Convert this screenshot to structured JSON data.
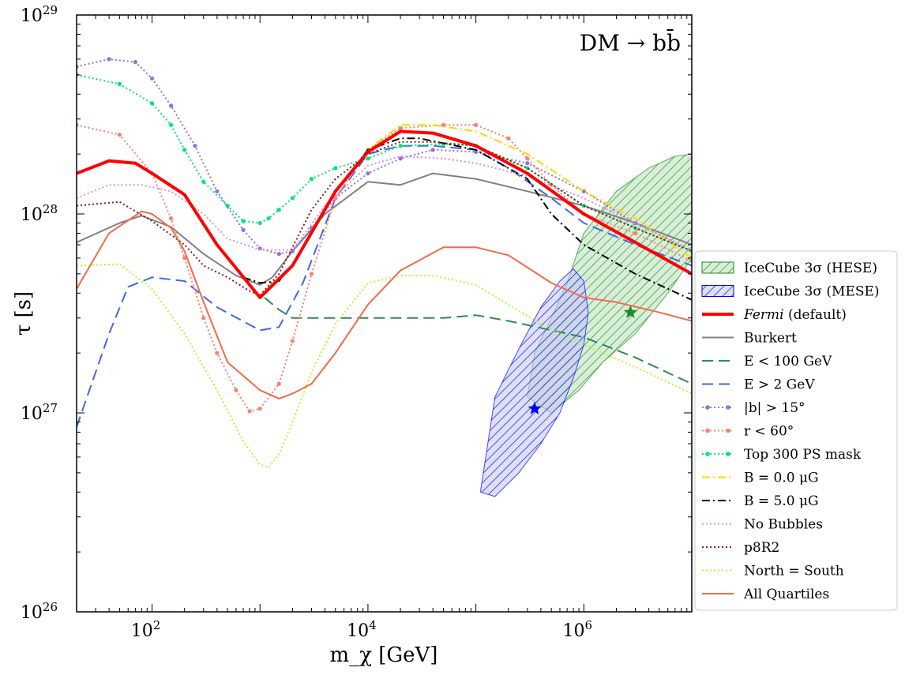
{
  "chart_data": {
    "type": "line",
    "annotation": "DM → bb̄",
    "xlabel": "m_χ [GeV]",
    "ylabel": "τ [s]",
    "xscale": "log",
    "yscale": "log",
    "xlim": [
      20,
      10000000
    ],
    "ylim": [
      1e+26,
      1e+29
    ],
    "x_ticks": [
      {
        "value": 100,
        "base": "10",
        "exp": "2"
      },
      {
        "value": 10000,
        "base": "10",
        "exp": "4"
      },
      {
        "value": 1000000,
        "base": "10",
        "exp": "6"
      }
    ],
    "y_ticks": [
      {
        "value": 1e+26,
        "base": "10",
        "exp": "26"
      },
      {
        "value": 1e+27,
        "base": "10",
        "exp": "27"
      },
      {
        "value": 1e+28,
        "base": "10",
        "exp": "28"
      },
      {
        "value": 1e+29,
        "base": "10",
        "exp": "29"
      }
    ],
    "legend_position": "right, outside",
    "series": [
      {
        "name": "Burkert",
        "color": "#808080",
        "dash": "solid",
        "width": 2,
        "x": [
          20,
          50,
          80,
          150,
          300,
          600,
          1000,
          1300,
          2000,
          4000,
          10000,
          20000,
          40000,
          100000,
          300000,
          1000000,
          3000000,
          10000000
        ],
        "y": [
          7.2e+27,
          9e+27,
          9.8e+27,
          8.6e+27,
          6.3e+27,
          4.9e+27,
          4.4e+27,
          4.8e+27,
          6.5e+27,
          1e+28,
          1.45e+28,
          1.4e+28,
          1.6e+28,
          1.5e+28,
          1.3e+28,
          1.1e+28,
          9e+27,
          7e+27
        ]
      },
      {
        "name": "E < 100 GeV",
        "color": "#2e8b57",
        "dash": "long",
        "width": 2,
        "x": [
          1100,
          1500,
          2000,
          5000,
          10000,
          50000,
          100000,
          200000,
          1000000,
          3000000,
          10000000
        ],
        "y": [
          3.8e+27,
          3.3e+27,
          3e+27,
          3e+27,
          3e+27,
          3e+27,
          3.1e+27,
          2.9e+27,
          2.4e+27,
          1.9e+27,
          1.4e+27
        ]
      },
      {
        "name": "E > 2 GeV",
        "color": "#4169e1",
        "dash": "long",
        "width": 2,
        "x": [
          20,
          40,
          60,
          100,
          200,
          400,
          1000,
          1500,
          2500,
          5000,
          10000,
          20000,
          40000,
          100000,
          200000,
          500000,
          1000000,
          3000000,
          10000000
        ],
        "y": [
          8.5e+26,
          2.5e+27,
          4.3e+27,
          4.8e+27,
          4.6e+27,
          3.4e+27,
          2.6e+27,
          2.7e+27,
          4.5e+27,
          1.2e+28,
          2e+28,
          2.2e+28,
          2.2e+28,
          2.1e+28,
          1.7e+28,
          1.2e+28,
          9e+27,
          7e+27,
          5.5e+27
        ]
      },
      {
        "name": "|b| > 15°",
        "color": "#9370db",
        "dash": "dotted-marker",
        "width": 2,
        "x": [
          20,
          40,
          70,
          100,
          150,
          250,
          400,
          700,
          1000,
          1500,
          2000,
          3000,
          5000,
          10000,
          20000,
          40000,
          100000,
          300000,
          1000000,
          3000000,
          10000000
        ],
        "y": [
          5.5e+28,
          6e+28,
          5.8e+28,
          4.8e+28,
          3.5e+28,
          2.2e+28,
          1.3e+28,
          8.3e+27,
          6.7e+27,
          6.3e+27,
          6.5e+27,
          8.5e+27,
          1.2e+28,
          1.6e+28,
          1.9e+28,
          2.1e+28,
          2.05e+28,
          1.8e+28,
          1.3e+28,
          9e+27,
          6.5e+27
        ]
      },
      {
        "name": "r < 60°",
        "color": "#fa8072",
        "dash": "dotted-marker",
        "width": 2,
        "x": [
          20,
          50,
          100,
          150,
          200,
          300,
          400,
          600,
          800,
          1000,
          1500,
          2000,
          3000,
          5000,
          10000,
          20000,
          50000,
          100000,
          200000,
          300000,
          500000,
          1000000,
          3000000,
          10000000
        ],
        "y": [
          2.8e+28,
          2.5e+28,
          1.6e+28,
          9.5e+27,
          6e+27,
          3e+27,
          2e+27,
          1.3e+27,
          1.02e+27,
          1.05e+27,
          1.4e+27,
          2.3e+27,
          5e+27,
          1.2e+28,
          2.1e+28,
          2.7e+28,
          2.8e+28,
          2.8e+28,
          2.4e+28,
          1.9e+28,
          1.4e+28,
          1e+28,
          8e+27,
          5.8e+27
        ]
      },
      {
        "name": "Top 300 PS mask",
        "color": "#00e676",
        "dash": "dotted-marker",
        "width": 2,
        "x": [
          20,
          50,
          100,
          150,
          200,
          300,
          500,
          700,
          1000,
          1200,
          1500,
          2000,
          3000,
          5000,
          10000,
          20000,
          50000,
          100000,
          300000,
          1000000,
          3000000,
          10000000
        ],
        "y": [
          5e+28,
          4.5e+28,
          3.6e+28,
          2.8e+28,
          2.1e+28,
          1.45e+28,
          1.1e+28,
          9.2e+27,
          9e+27,
          9.5e+27,
          1.05e+28,
          1.2e+28,
          1.5e+28,
          1.7e+28,
          1.9e+28,
          2.2e+28,
          2.25e+28,
          2.2e+28,
          1.7e+28,
          1.1e+28,
          8.5e+27,
          6.5e+27
        ]
      },
      {
        "name": "B = 0.0 μG",
        "color": "#ffd700",
        "dash": "dashdot",
        "width": 2,
        "x": [
          20,
          40,
          70,
          100,
          200,
          400,
          1000,
          2000,
          5000,
          10000,
          20000,
          40000,
          100000,
          300000,
          1000000,
          3000000,
          10000000
        ],
        "y": [
          1.6e+28,
          1.85e+28,
          1.8e+28,
          1.6e+28,
          1.25e+28,
          7e+27,
          3.8e+27,
          5.5e+27,
          1.3e+28,
          2.1e+28,
          2.8e+28,
          2.8e+28,
          2.6e+28,
          2e+28,
          1.3e+28,
          9.5e+27,
          6e+27
        ]
      },
      {
        "name": "B = 5.0 μG",
        "color": "#000000",
        "dash": "dashdot",
        "width": 2,
        "x": [
          20,
          40,
          70,
          100,
          200,
          400,
          700,
          1000,
          1500,
          2000,
          5000,
          10000,
          20000,
          30000,
          100000,
          300000,
          500000,
          1000000,
          3000000,
          10000000
        ],
        "y": [
          1.6e+28,
          1.85e+28,
          1.8e+28,
          1.6e+28,
          1.25e+28,
          7e+27,
          4.8e+27,
          4.5e+27,
          4.6e+27,
          5.5e+27,
          1.3e+28,
          2.1e+28,
          2.4e+28,
          2.4e+28,
          2.1e+28,
          1.5e+28,
          1e+28,
          7e+27,
          5e+27,
          3.7e+27
        ]
      },
      {
        "name": "No Bubbles",
        "color": "#da8fe8",
        "dash": "dotted",
        "width": 2,
        "x": [
          20,
          40,
          80,
          150,
          300,
          500,
          1000,
          2000,
          4000,
          10000,
          20000,
          50000,
          100000,
          300000,
          1000000,
          3000000,
          10000000
        ],
        "y": [
          1.2e+28,
          1.4e+28,
          1.4e+28,
          1.3e+28,
          1e+28,
          7.5e+27,
          6.6e+27,
          6.6e+27,
          1.1e+28,
          1.75e+28,
          1.95e+28,
          1.9e+28,
          1.8e+28,
          1.55e+28,
          1.2e+28,
          9e+27,
          6.6e+27
        ]
      },
      {
        "name": "p8R2",
        "color": "#8b1a1a",
        "dash": "dotted",
        "width": 2,
        "x": [
          20,
          50,
          100,
          200,
          300,
          500,
          800,
          1000,
          1500,
          2000,
          3000,
          5000,
          10000,
          20000,
          40000,
          100000,
          300000,
          1000000,
          3000000,
          10000000
        ],
        "y": [
          1.1e+28,
          1.15e+28,
          9.2e+27,
          7e+27,
          5.5e+27,
          4.8e+27,
          4.1e+27,
          3.9e+27,
          5e+27,
          6.8e+27,
          1.05e+28,
          1.5e+28,
          2e+28,
          2.3e+28,
          2.3e+28,
          2.2e+28,
          1.7e+28,
          1.1e+28,
          8.5e+27,
          6.5e+27
        ]
      },
      {
        "name": "North = South",
        "color": "#adff2f",
        "dash": "dotted",
        "width": 2,
        "x": [
          20,
          50,
          100,
          200,
          400,
          700,
          1000,
          1200,
          1500,
          2000,
          3000,
          5000,
          10000,
          20000,
          40000,
          100000,
          200000,
          400000,
          1000000,
          3000000,
          10000000
        ],
        "y": [
          5.5e+27,
          5.6e+27,
          4.2e+27,
          2.5e+27,
          1.3e+27,
          7.2e+26,
          5.5e+26,
          5.3e+26,
          6.2e+26,
          9e+26,
          1.6e+27,
          2.8e+27,
          4.5e+27,
          4.9e+27,
          4.9e+27,
          4.4e+27,
          3.5e+27,
          2.8e+27,
          2.2e+27,
          1.7e+27,
          1.25e+27
        ]
      },
      {
        "name": "All Quartiles",
        "color": "#f4694b",
        "dash": "solid",
        "width": 2,
        "x": [
          20,
          40,
          80,
          100,
          150,
          200,
          300,
          500,
          1000,
          1500,
          2000,
          3000,
          5000,
          10000,
          20000,
          50000,
          100000,
          200000,
          500000,
          1000000,
          2000000,
          5000000,
          10000000
        ],
        "y": [
          4.2e+27,
          8e+27,
          1.03e+28,
          1e+28,
          8.5e+27,
          6.5e+27,
          3.6e+27,
          1.8e+27,
          1.3e+27,
          1.18e+27,
          1.25e+27,
          1.4e+27,
          2e+27,
          3.5e+27,
          5.2e+27,
          6.8e+27,
          6.8e+27,
          6.2e+27,
          4.5e+27,
          3.8e+27,
          3.6e+27,
          3.2e+27,
          2.9e+27
        ]
      },
      {
        "name": "Fermi (default)",
        "color": "#ff0000",
        "dash": "solid",
        "width": 4,
        "x": [
          20,
          40,
          70,
          100,
          200,
          400,
          1000,
          2000,
          5000,
          10000,
          20000,
          40000,
          100000,
          300000,
          1000000,
          3000000,
          10000000
        ],
        "y": [
          1.6e+28,
          1.85e+28,
          1.8e+28,
          1.6e+28,
          1.25e+28,
          7e+27,
          3.8e+27,
          5.5e+27,
          1.3e+28,
          2.05e+28,
          2.6e+28,
          2.55e+28,
          2.2e+28,
          1.6e+28,
          1e+28,
          7.2e+27,
          5e+27
        ]
      }
    ],
    "regions": [
      {
        "name": "IceCube 3σ (HESE)",
        "color": "#228b22",
        "fill": "#b6ddb6",
        "hatch": "////",
        "x": [
          700000,
          1000000,
          2000000,
          4000000,
          7000000,
          10000000,
          10000000,
          6000000,
          3000000,
          1500000,
          900000,
          500000,
          300000,
          350000,
          500000,
          700000
        ],
        "y": [
          4.5e+27,
          8e+27,
          1.3e+28,
          1.7e+28,
          1.95e+28,
          2e+28,
          6e+27,
          4e+27,
          2.5e+27,
          1.8e+27,
          1.3e+27,
          1e+27,
          1.2e+27,
          2e+27,
          3e+27,
          4.5e+27
        ]
      },
      {
        "name": "IceCube 3σ (MESE)",
        "color": "#0000ff",
        "fill": "#c4c4f2",
        "hatch": "////",
        "x": [
          110000,
          150000,
          250000,
          400000,
          600000,
          800000,
          1000000,
          1100000,
          1000000,
          800000,
          600000,
          400000,
          250000,
          150000,
          110000
        ],
        "y": [
          4e+26,
          3.8e+26,
          5e+26,
          7e+26,
          1e+27,
          1.5e+27,
          2.2e+27,
          3.2e+27,
          4.6e+27,
          5.3e+27,
          4.6e+27,
          3.4e+27,
          2.1e+27,
          1.2e+27,
          4e+26
        ]
      }
    ],
    "best_fit_markers": [
      {
        "x": 350000,
        "y": 1.05e+27,
        "color": "#0000ff"
      },
      {
        "x": 2700000,
        "y": 3.2e+27,
        "color": "#228b22"
      }
    ]
  }
}
